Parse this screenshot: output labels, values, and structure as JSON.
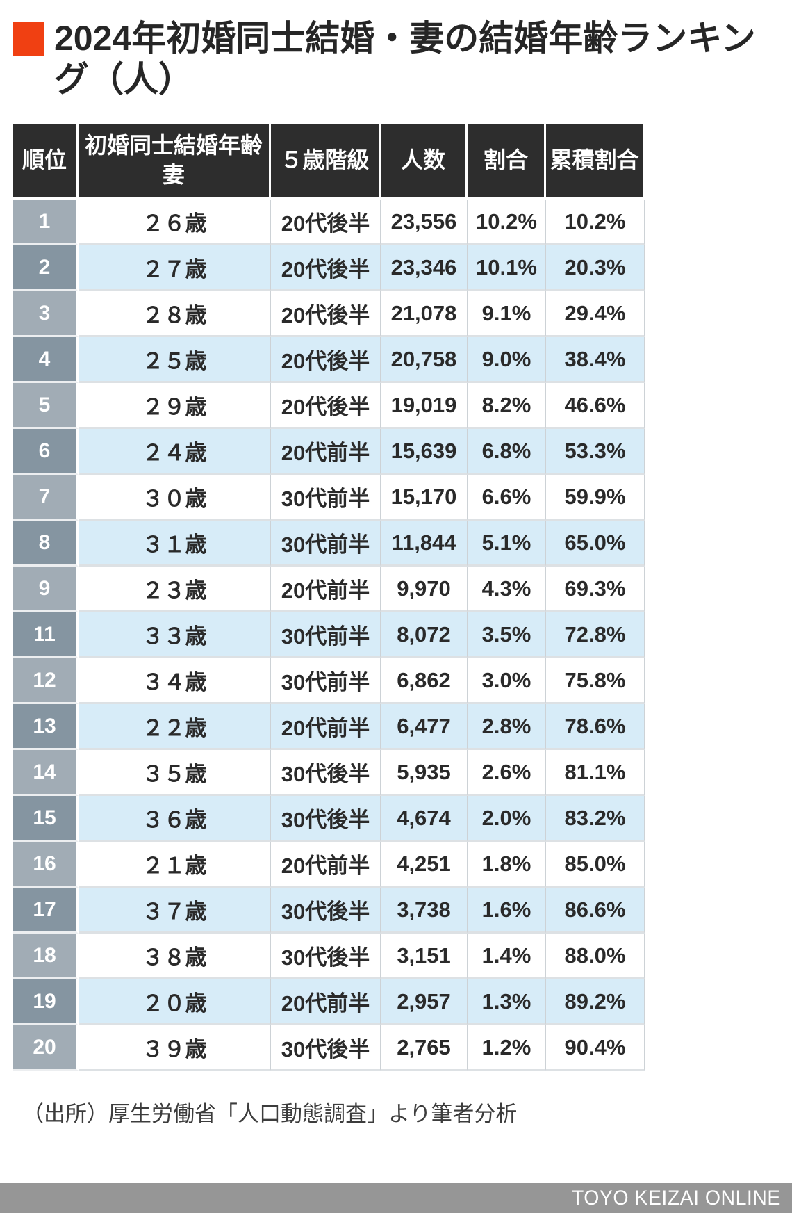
{
  "header": {
    "title_line1": "2024年初婚同士結婚・妻の結婚年齢ランキン",
    "title_line2": "グ（人）"
  },
  "chart_data": {
    "type": "table",
    "title": "2024年初婚同士結婚・妻の結婚年齢ランキング（人）",
    "columns": [
      "順位",
      "初婚同士結婚年齢\n妻",
      "５歳階級",
      "人数",
      "割合",
      "累積割合"
    ],
    "rows": [
      [
        "1",
        "２６歳",
        "20代後半",
        "23,556",
        "10.2%",
        "10.2%"
      ],
      [
        "2",
        "２７歳",
        "20代後半",
        "23,346",
        "10.1%",
        "20.3%"
      ],
      [
        "3",
        "２８歳",
        "20代後半",
        "21,078",
        "9.1%",
        "29.4%"
      ],
      [
        "4",
        "２５歳",
        "20代後半",
        "20,758",
        "9.0%",
        "38.4%"
      ],
      [
        "5",
        "２９歳",
        "20代後半",
        "19,019",
        "8.2%",
        "46.6%"
      ],
      [
        "6",
        "２４歳",
        "20代前半",
        "15,639",
        "6.8%",
        "53.3%"
      ],
      [
        "7",
        "３０歳",
        "30代前半",
        "15,170",
        "6.6%",
        "59.9%"
      ],
      [
        "8",
        "３１歳",
        "30代前半",
        "11,844",
        "5.1%",
        "65.0%"
      ],
      [
        "9",
        "２３歳",
        "20代前半",
        "9,970",
        "4.3%",
        "69.3%"
      ],
      [
        "11",
        "３３歳",
        "30代前半",
        "8,072",
        "3.5%",
        "72.8%"
      ],
      [
        "12",
        "３４歳",
        "30代前半",
        "6,862",
        "3.0%",
        "75.8%"
      ],
      [
        "13",
        "２２歳",
        "20代前半",
        "6,477",
        "2.8%",
        "78.6%"
      ],
      [
        "14",
        "３５歳",
        "30代後半",
        "5,935",
        "2.6%",
        "81.1%"
      ],
      [
        "15",
        "３６歳",
        "30代後半",
        "4,674",
        "2.0%",
        "83.2%"
      ],
      [
        "16",
        "２１歳",
        "20代前半",
        "4,251",
        "1.8%",
        "85.0%"
      ],
      [
        "17",
        "３７歳",
        "30代後半",
        "3,738",
        "1.6%",
        "86.6%"
      ],
      [
        "18",
        "３８歳",
        "30代後半",
        "3,151",
        "1.4%",
        "88.0%"
      ],
      [
        "19",
        "２０歳",
        "20代前半",
        "2,957",
        "1.3%",
        "89.2%"
      ],
      [
        "20",
        "３９歳",
        "30代後半",
        "2,765",
        "1.2%",
        "90.4%"
      ]
    ]
  },
  "source_note": "（出所）厚生労働省「人口動態調査」より筆者分析",
  "footer": {
    "brand": "TOYO KEIZAI ONLINE"
  },
  "colors": {
    "accent": "#f04012",
    "header_bg": "#2d2d2d",
    "rank_odd": "#a1acb5",
    "rank_even": "#8595a1",
    "row_alt": "#d7ecf8",
    "footer_bg": "#969696",
    "ink": "#2a2a2a",
    "grid": "#cdd2d6"
  }
}
